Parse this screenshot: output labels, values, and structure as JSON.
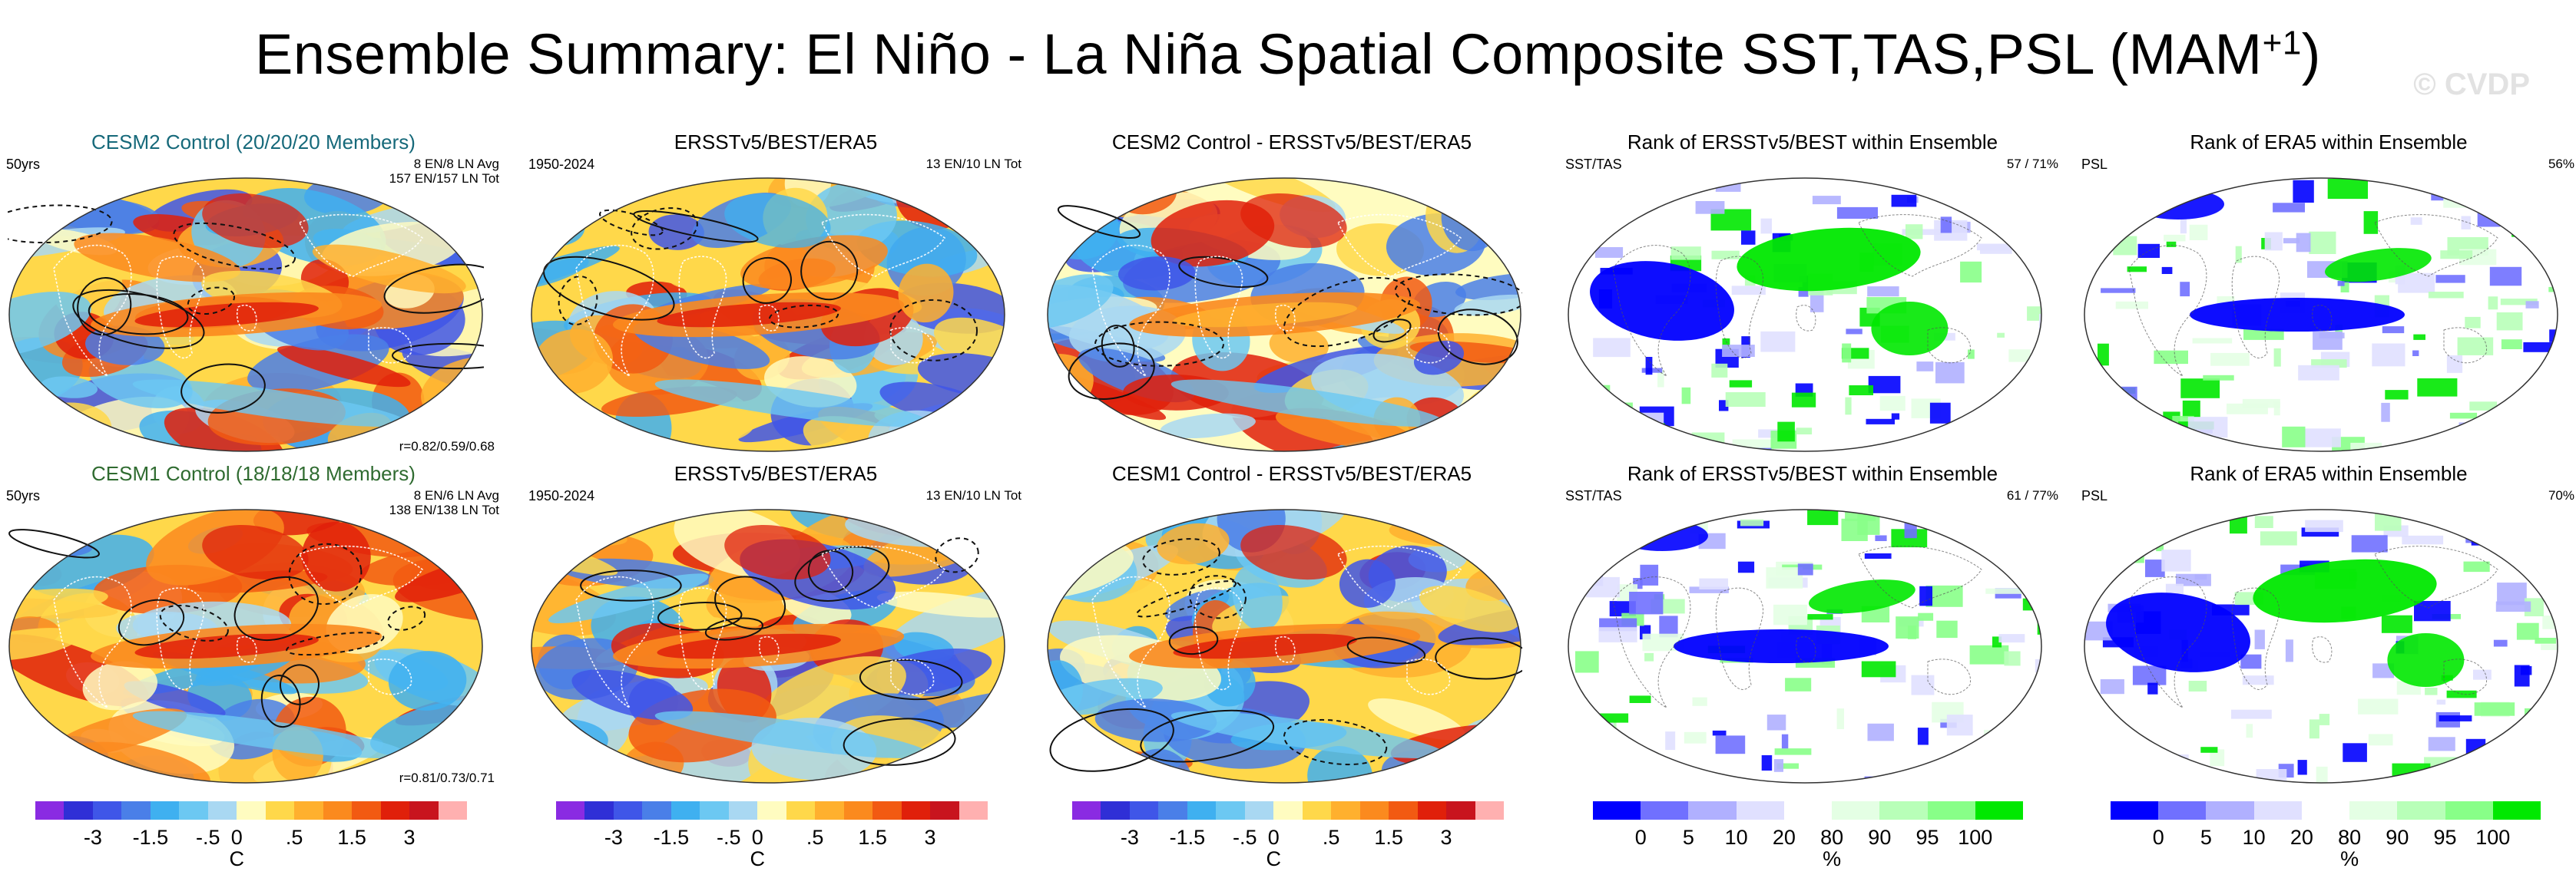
{
  "title_main": "Ensemble Summary: El Niño - La Niña Spatial Composite SST,TAS,PSL (MAM",
  "title_sup": "+1",
  "title_end": ")",
  "watermark": "© CVDP",
  "chart_data": [
    {
      "type": "heatmap",
      "panel": "r1c1",
      "title": "CESM2 Control (20/20/20 Members)",
      "left_text": "50yrs",
      "right_text": [
        "8 EN/8 LN Avg",
        "157 EN/157 LN Tot"
      ],
      "bottom_text": "r=0.82/0.59/0.68"
    },
    {
      "type": "heatmap",
      "panel": "r1c2",
      "title": "ERSSTv5/BEST/ERA5",
      "left_text": "1950-2024",
      "right_text": [
        "13 EN/10 LN Tot"
      ],
      "bottom_text": ""
    },
    {
      "type": "heatmap",
      "panel": "r1c3",
      "title": "CESM2 Control - ERSSTv5/BEST/ERA5",
      "left_text": "",
      "right_text": [],
      "bottom_text": ""
    },
    {
      "type": "heatmap",
      "panel": "r1c4",
      "title": "Rank of ERSSTv5/BEST within Ensemble",
      "left_text": "SST/TAS",
      "right_text": [
        "57 /  71%"
      ],
      "bottom_text": ""
    },
    {
      "type": "heatmap",
      "panel": "r1c5",
      "title": "Rank of ERA5 within Ensemble",
      "left_text": "PSL",
      "right_text": [
        "56%"
      ],
      "bottom_text": ""
    },
    {
      "type": "heatmap",
      "panel": "r2c1",
      "title": "CESM1 Control (18/18/18 Members)",
      "left_text": "50yrs",
      "right_text": [
        "8 EN/6 LN Avg",
        "138 EN/138 LN Tot"
      ],
      "bottom_text": "r=0.81/0.73/0.71"
    },
    {
      "type": "heatmap",
      "panel": "r2c2",
      "title": "ERSSTv5/BEST/ERA5",
      "left_text": "1950-2024",
      "right_text": [
        "13 EN/10 LN Tot"
      ],
      "bottom_text": ""
    },
    {
      "type": "heatmap",
      "panel": "r2c3",
      "title": "CESM1 Control - ERSSTv5/BEST/ERA5",
      "left_text": "",
      "right_text": [],
      "bottom_text": ""
    },
    {
      "type": "heatmap",
      "panel": "r2c4",
      "title": "Rank of ERSSTv5/BEST within Ensemble",
      "left_text": "SST/TAS",
      "right_text": [
        "61 /  77%"
      ],
      "bottom_text": ""
    },
    {
      "type": "heatmap",
      "panel": "r2c5",
      "title": "Rank of ERA5 within Ensemble",
      "left_text": "PSL",
      "right_text": [
        "70%"
      ],
      "bottom_text": ""
    }
  ],
  "colorbars": {
    "temp": {
      "unit": "C",
      "colors": [
        "#8a2be2",
        "#2f2fd6",
        "#3f56e8",
        "#4a7fe8",
        "#3fb0f0",
        "#6cc8f2",
        "#a9d8f2",
        "#fffcc0",
        "#ffd84a",
        "#ffb02e",
        "#fb8a1e",
        "#f25a12",
        "#e0200a",
        "#c8141e",
        "#ffb0b0"
      ],
      "ticks": [
        "-3",
        "-1.5",
        "-.5",
        "0",
        ".5",
        "1.5",
        "3"
      ],
      "tick_after_swatch": [
        2,
        4,
        6,
        7,
        9,
        11,
        13
      ]
    },
    "rank": {
      "unit": "%",
      "colors": [
        "#0000ff",
        "#7070ff",
        "#b0b0ff",
        "#e0e0ff",
        "#ffffff",
        "#e4ffe4",
        "#b8ffb8",
        "#88ff88",
        "#00e800"
      ],
      "ticks": [
        "0",
        "5",
        "10",
        "20",
        "80",
        "90",
        "95",
        "100"
      ],
      "tick_after_swatch": [
        1,
        2,
        3,
        4,
        5,
        6,
        7,
        8
      ]
    }
  },
  "colors": {
    "warm_base": "#ffd84a",
    "cool_base": "#6cc8f2",
    "rank_low": "#0000ff",
    "rank_high": "#00e800"
  }
}
